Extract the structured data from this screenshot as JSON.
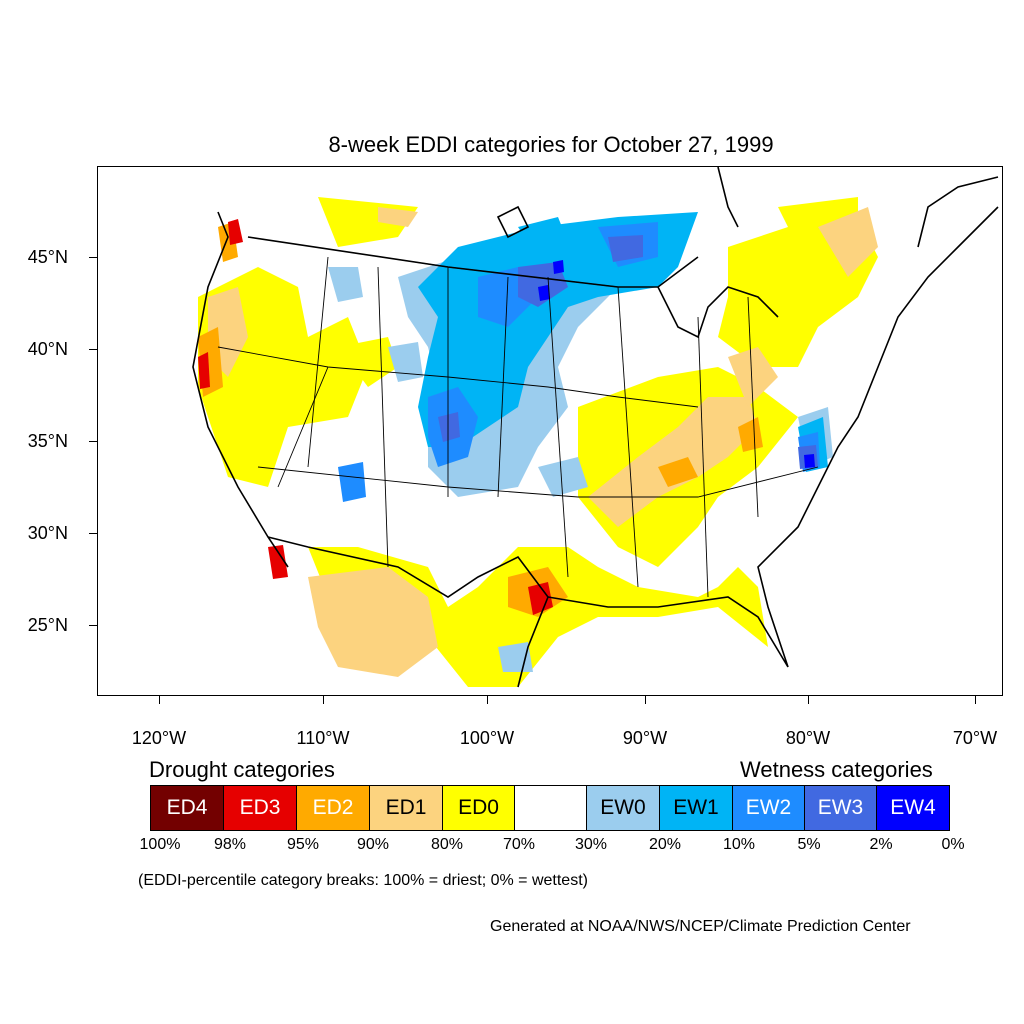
{
  "title": "8-week EDDI categories for October 27, 1999",
  "latitudes": [
    "45°N",
    "40°N",
    "35°N",
    "30°N",
    "25°N"
  ],
  "longitudes": [
    "120°W",
    "110°W",
    "100°W",
    "90°W",
    "80°W",
    "70°W"
  ],
  "legend": {
    "drought_heading": "Drought categories",
    "wetness_heading": "Wetness categories",
    "categories": [
      {
        "label": "ED4",
        "color": "#730000",
        "text_color": "#ffffff"
      },
      {
        "label": "ED3",
        "color": "#e60000",
        "text_color": "#ffffff"
      },
      {
        "label": "ED2",
        "color": "#ffaa00",
        "text_color": "#ffffff"
      },
      {
        "label": "ED1",
        "color": "#fcd37f",
        "text_color": "#000000"
      },
      {
        "label": "ED0",
        "color": "#ffff00",
        "text_color": "#000000"
      },
      {
        "label": "",
        "color": "#ffffff",
        "text_color": "#000000"
      },
      {
        "label": "EW0",
        "color": "#9bcdee",
        "text_color": "#000000"
      },
      {
        "label": "EW1",
        "color": "#00b4f5",
        "text_color": "#000000"
      },
      {
        "label": "EW2",
        "color": "#1e8cff",
        "text_color": "#ffffff"
      },
      {
        "label": "EW3",
        "color": "#4169e1",
        "text_color": "#ffffff"
      },
      {
        "label": "EW4",
        "color": "#0000ff",
        "text_color": "#ffffff"
      }
    ],
    "breaks": [
      "100%",
      "98%",
      "95%",
      "90%",
      "80%",
      "70%",
      "30%",
      "20%",
      "10%",
      "5%",
      "2%",
      "0%"
    ],
    "note": "(EDDI-percentile category breaks: 100% = driest; 0% = wettest)"
  },
  "credit": "Generated at NOAA/NWS/NCEP/Climate Prediction Center"
}
